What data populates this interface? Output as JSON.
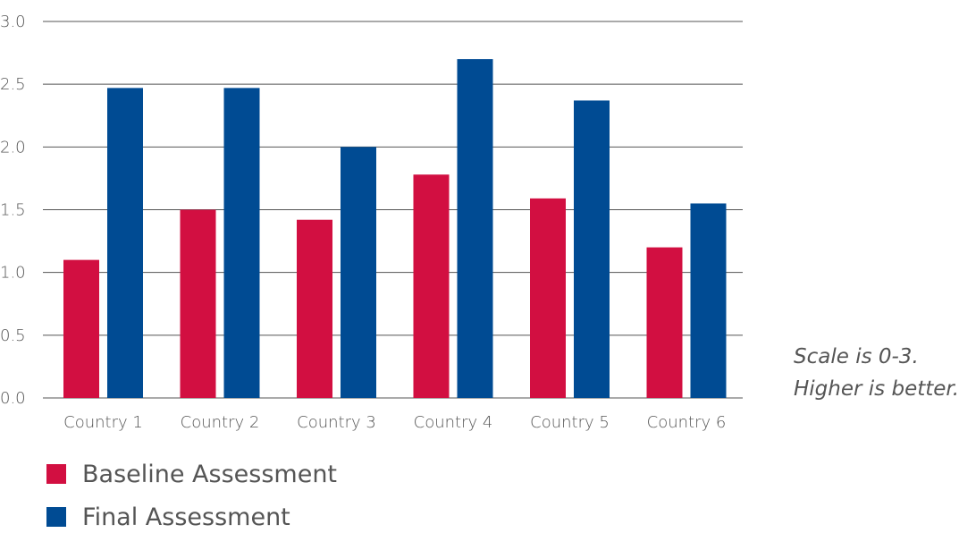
{
  "chart_data": {
    "type": "bar",
    "categories": [
      "Country 1",
      "Country 2",
      "Country 3",
      "Country 4",
      "Country 5",
      "Country 6"
    ],
    "series": [
      {
        "name": "Baseline Assessment",
        "color": "#d20f41",
        "values": [
          1.1,
          1.5,
          1.42,
          1.78,
          1.59,
          1.2
        ]
      },
      {
        "name": "Final Assessment",
        "color": "#004b93",
        "values": [
          2.47,
          2.47,
          2.0,
          2.7,
          2.37,
          1.55
        ]
      }
    ],
    "yticks": [
      "0.0",
      "0.5",
      "1.0",
      "1.5",
      "2.0",
      "2.5",
      "3.0"
    ],
    "ylim": [
      0,
      3
    ],
    "grid": true,
    "legend_position": "bottom-left",
    "note_lines": [
      "Scale is 0-3.",
      "Higher is better."
    ]
  }
}
